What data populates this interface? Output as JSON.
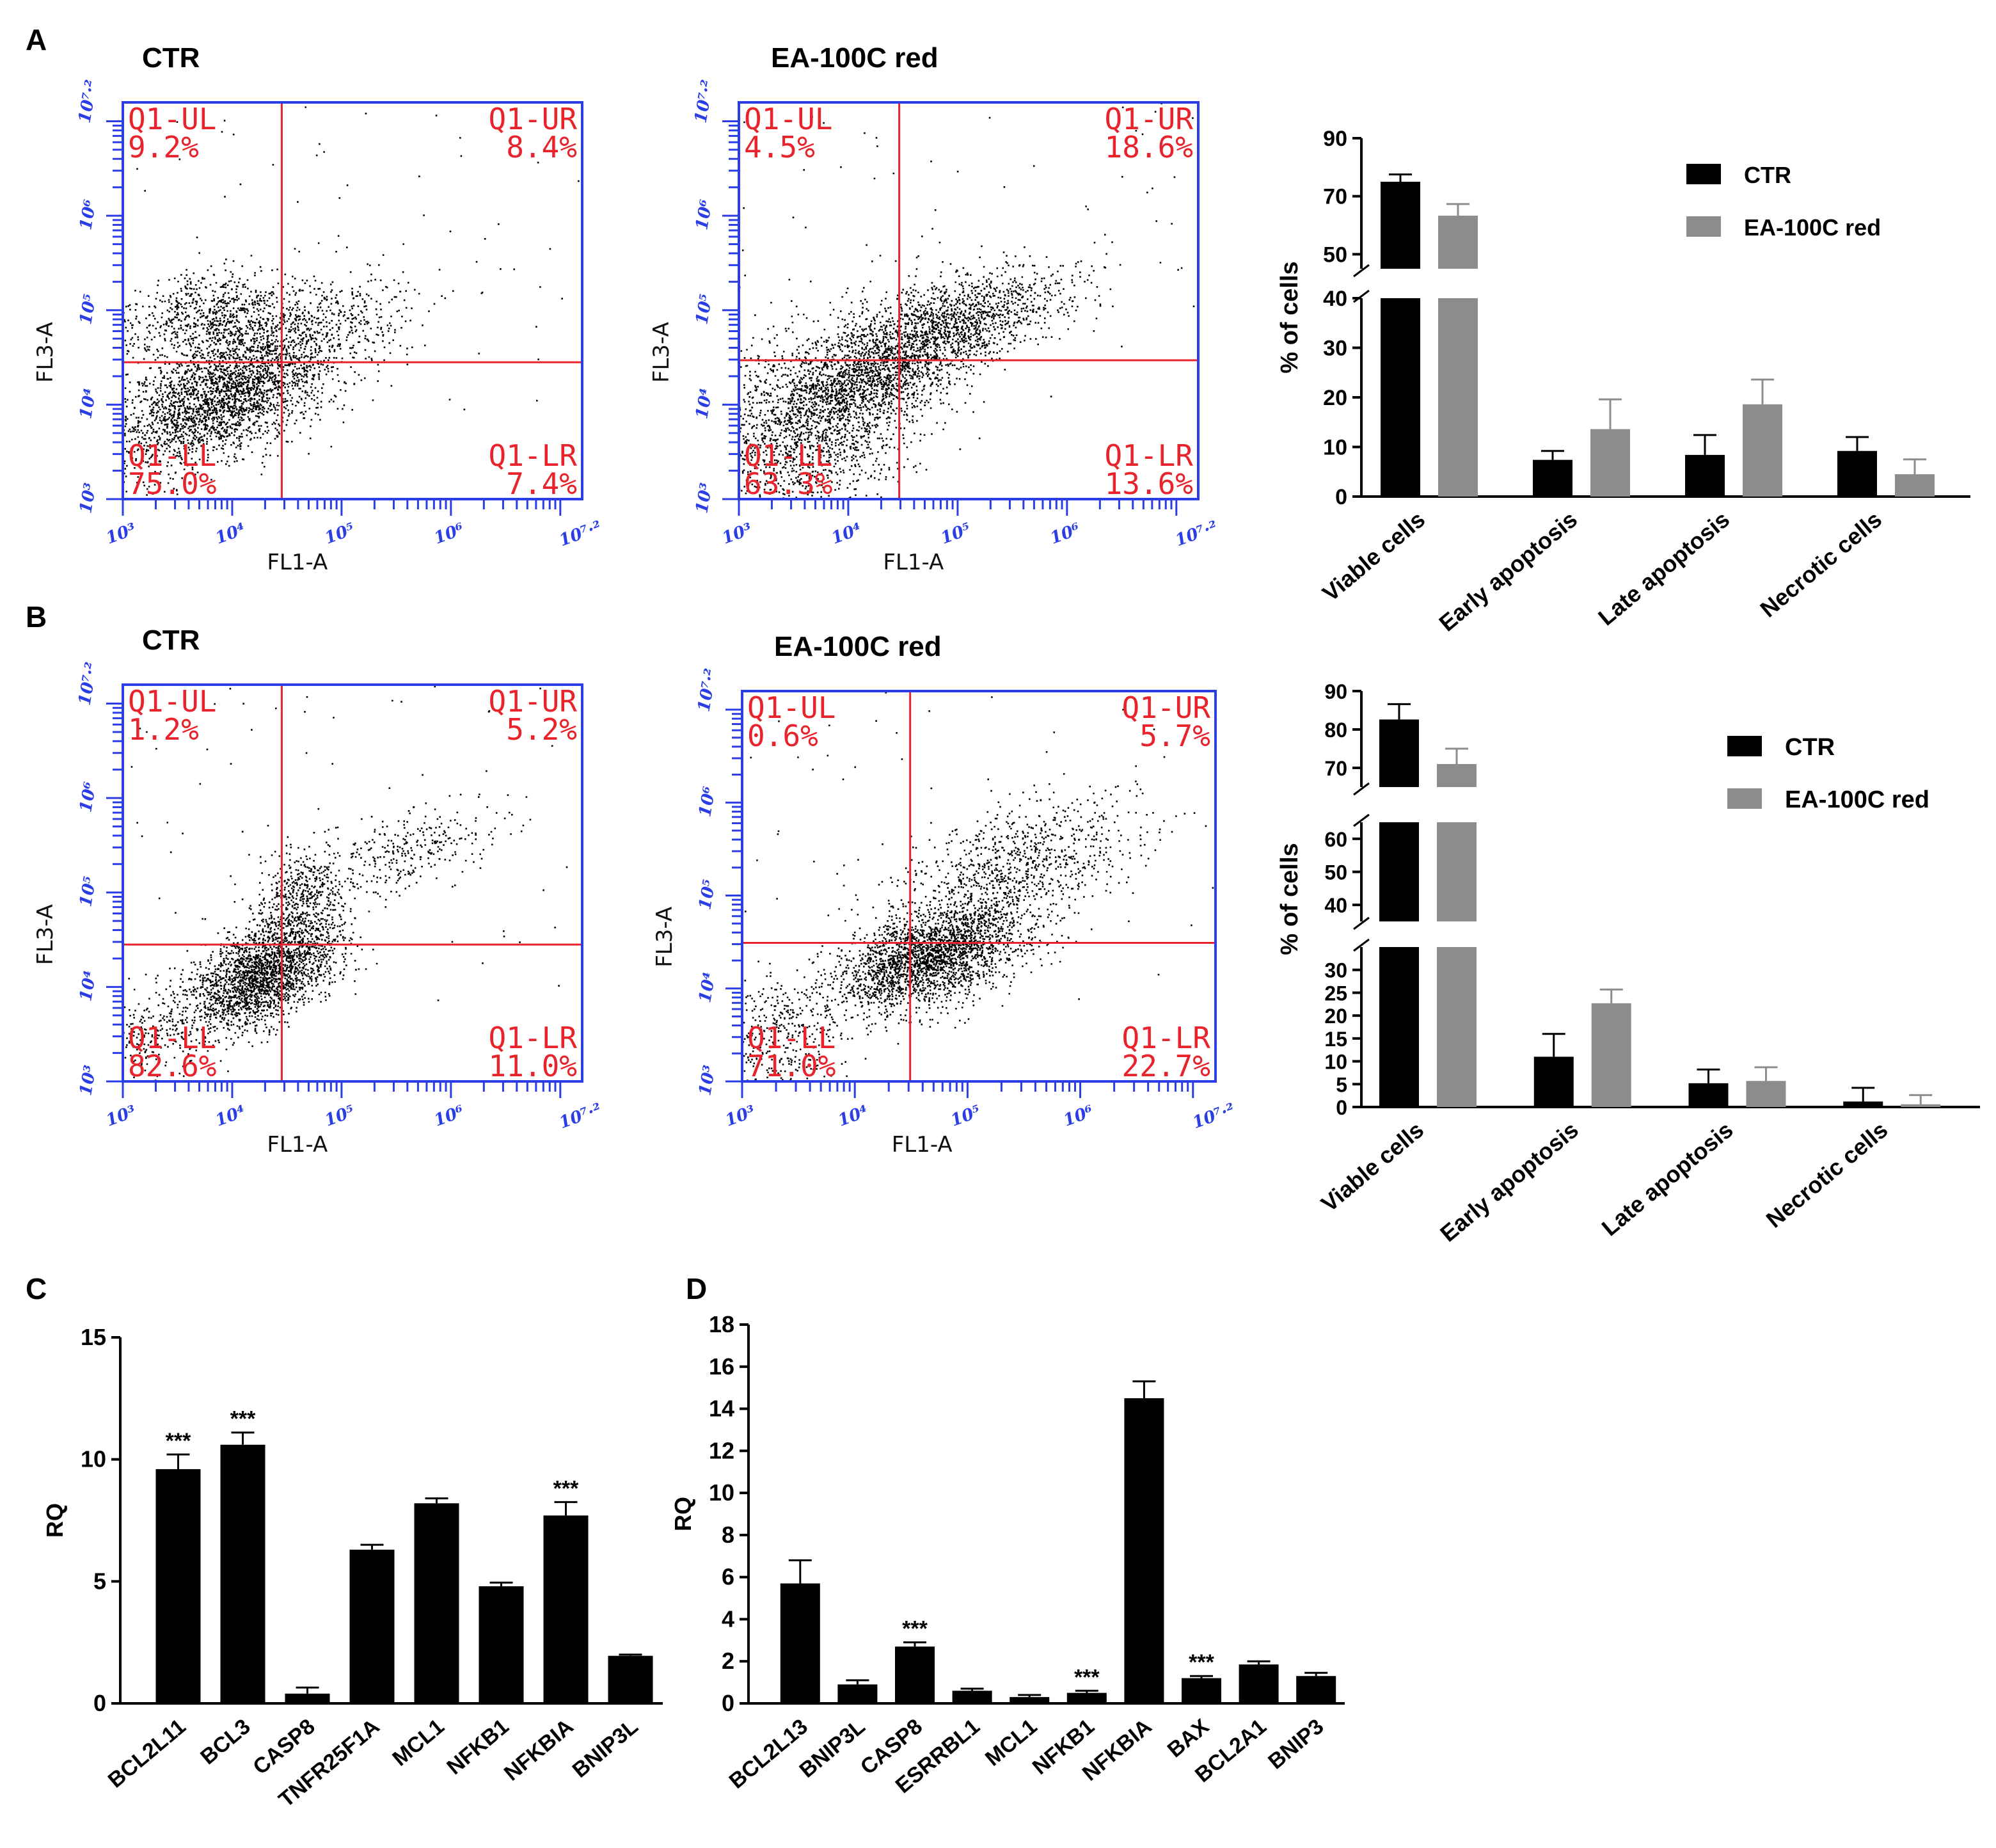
{
  "panel_labels": [
    "A",
    "B",
    "C",
    "D"
  ],
  "flow_plots": [
    {
      "panel": "A",
      "title": "CTR",
      "x_label": "FL1-A",
      "y_label": "FL3-A",
      "tick_labels": [
        "10³",
        "10⁴",
        "10⁵",
        "10⁶",
        "10⁷·²"
      ],
      "quadrants": {
        "UL": {
          "name": "Q1-UL",
          "pct": "9.2%"
        },
        "UR": {
          "name": "Q1-UR",
          "pct": "8.4%"
        },
        "LL": {
          "name": "Q1-LL",
          "pct": "75.0%"
        },
        "LR": {
          "name": "Q1-LR",
          "pct": "7.4%"
        }
      }
    },
    {
      "panel": "A",
      "title": "EA-100C red",
      "x_label": "FL1-A",
      "y_label": "FL3-A",
      "tick_labels": [
        "10³",
        "10⁴",
        "10⁵",
        "10⁶",
        "10⁷·²"
      ],
      "quadrants": {
        "UL": {
          "name": "Q1-UL",
          "pct": "4.5%"
        },
        "UR": {
          "name": "Q1-UR",
          "pct": "18.6%"
        },
        "LL": {
          "name": "Q1-LL",
          "pct": "63.3%"
        },
        "LR": {
          "name": "Q1-LR",
          "pct": "13.6%"
        }
      }
    },
    {
      "panel": "B",
      "title": "CTR",
      "x_label": "FL1-A",
      "y_label": "FL3-A",
      "tick_labels": [
        "10³",
        "10⁴",
        "10⁵",
        "10⁶",
        "10⁷·²"
      ],
      "quadrants": {
        "UL": {
          "name": "Q1-UL",
          "pct": "1.2%"
        },
        "UR": {
          "name": "Q1-UR",
          "pct": "5.2%"
        },
        "LL": {
          "name": "Q1-LL",
          "pct": "82.6%"
        },
        "LR": {
          "name": "Q1-LR",
          "pct": "11.0%"
        }
      }
    },
    {
      "panel": "B",
      "title": "EA-100C red",
      "x_label": "FL1-A",
      "y_label": "FL3-A",
      "tick_labels": [
        "10³",
        "10⁴",
        "10⁵",
        "10⁶",
        "10⁷·²"
      ],
      "quadrants": {
        "UL": {
          "name": "Q1-UL",
          "pct": "0.6%"
        },
        "UR": {
          "name": "Q1-UR",
          "pct": "5.7%"
        },
        "LL": {
          "name": "Q1-LL",
          "pct": "71.0%"
        },
        "LR": {
          "name": "Q1-LR",
          "pct": "22.7%"
        }
      }
    }
  ],
  "colors": {
    "ctr": "#000000",
    "ea": "#8c8c8c",
    "quadrant": "#e8232b",
    "axis_blue": "#2b3ee6"
  },
  "chart_data": [
    {
      "panel": "A",
      "type": "bar",
      "ylabel": "% of cells",
      "categories": [
        "Viable cells",
        "Early apoptosis",
        "Late apoptosis",
        "Necrotic cells"
      ],
      "legend_position": "top-right",
      "series": [
        {
          "name": "CTR",
          "values": [
            75,
            7.4,
            8.4,
            9.2
          ],
          "errors": [
            2.5,
            1.8,
            4.0,
            2.8
          ]
        },
        {
          "name": "EA-100C red",
          "values": [
            63.3,
            13.6,
            18.6,
            4.5
          ],
          "errors": [
            4.0,
            6.0,
            5.0,
            3.0
          ]
        }
      ],
      "y_segments": [
        {
          "range": [
            0,
            40
          ],
          "ticks": [
            0,
            10,
            20,
            30,
            40
          ]
        },
        {
          "range": [
            45,
            90
          ],
          "ticks": [
            50,
            70,
            90
          ]
        }
      ]
    },
    {
      "panel": "B",
      "type": "bar",
      "ylabel": "% of cells",
      "categories": [
        "Viable cells",
        "Early apoptosis",
        "Late apoptosis",
        "Necrotic cells"
      ],
      "legend_position": "top-right",
      "series": [
        {
          "name": "CTR",
          "values": [
            82.6,
            11.0,
            5.2,
            1.2
          ],
          "errors": [
            4.0,
            5.0,
            3.0,
            3.0
          ]
        },
        {
          "name": "EA-100C red",
          "values": [
            71.0,
            22.7,
            5.7,
            0.6
          ],
          "errors": [
            4.0,
            3.0,
            3.0,
            2.0
          ]
        }
      ],
      "y_segments": [
        {
          "range": [
            0,
            35
          ],
          "ticks": [
            0,
            5,
            10,
            15,
            20,
            25,
            30
          ]
        },
        {
          "range": [
            35,
            65
          ],
          "ticks": [
            40,
            50,
            60
          ]
        },
        {
          "range": [
            65,
            90
          ],
          "ticks": [
            70,
            80,
            90
          ]
        }
      ]
    },
    {
      "panel": "C",
      "type": "bar",
      "ylabel": "RQ",
      "ylim": [
        0,
        15
      ],
      "yticks": [
        0,
        5,
        10,
        15
      ],
      "categories": [
        "BCL2L11",
        "BCL3",
        "CASP8",
        "TNFR25F1A",
        "MCL1",
        "NFKB1",
        "NFKBIA",
        "BNIP3L"
      ],
      "values": [
        9.6,
        10.6,
        0.4,
        6.3,
        8.2,
        4.8,
        7.7,
        1.95
      ],
      "errors": [
        0.6,
        0.5,
        0.25,
        0.2,
        0.2,
        0.15,
        0.55,
        0.05
      ],
      "annotations": [
        "***",
        "***",
        "",
        "",
        "",
        "",
        "***",
        ""
      ]
    },
    {
      "panel": "D",
      "type": "bar",
      "ylabel": "RQ",
      "ylim": [
        0,
        18
      ],
      "yticks": [
        0,
        2,
        4,
        6,
        8,
        10,
        12,
        14,
        16,
        18
      ],
      "categories": [
        "BCL2L13",
        "BNIP3L",
        "CASP8",
        "ESRRBL1",
        "MCL1",
        "NFKB1",
        "NFKBIA",
        "BAX",
        "BCL2A1",
        "BNIP3"
      ],
      "values": [
        5.7,
        0.9,
        2.7,
        0.6,
        0.3,
        0.5,
        14.5,
        1.2,
        1.85,
        1.3
      ],
      "errors": [
        1.1,
        0.2,
        0.2,
        0.1,
        0.1,
        0.1,
        0.8,
        0.1,
        0.15,
        0.15
      ],
      "annotations": [
        "",
        "",
        "***",
        "",
        "",
        "***",
        "",
        "***",
        "",
        ""
      ]
    }
  ]
}
